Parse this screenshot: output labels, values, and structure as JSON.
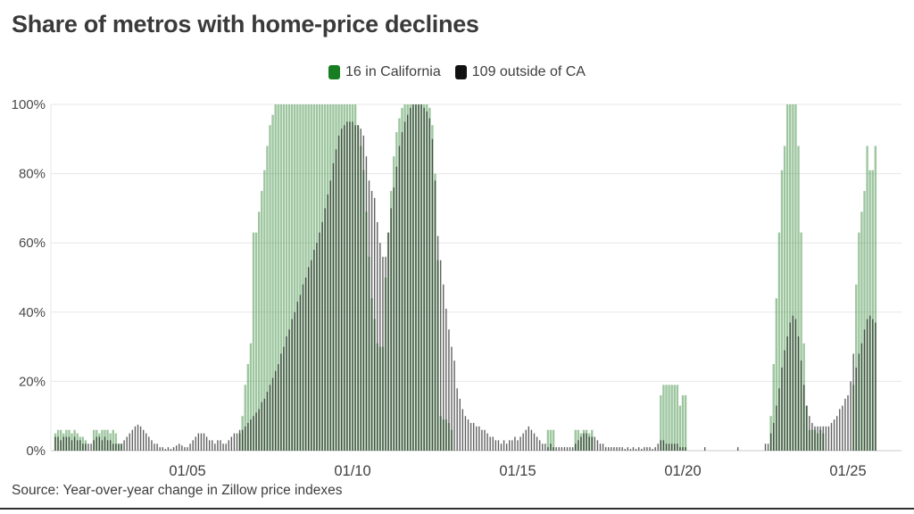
{
  "header": {
    "title": "Share of metros with home-price declines"
  },
  "source": {
    "text": "Source: Year-over-year change in Zillow price indexes"
  },
  "chart_data": {
    "type": "bar",
    "title": "Share of metros with home-price declines",
    "subtitle": "",
    "unit": "%",
    "frequency": "monthly",
    "start_month": "2001-01",
    "end_month": "2025-11",
    "ylim": [
      0,
      100
    ],
    "grid": "horizontal",
    "legend_position": "top-center",
    "axis_colors": {
      "gridline": "#e7e7e7",
      "baseline": "#c9c9c9"
    },
    "y_ticks": [
      {
        "value": 0,
        "label": "0%"
      },
      {
        "value": 20,
        "label": "20%"
      },
      {
        "value": 40,
        "label": "40%"
      },
      {
        "value": 60,
        "label": "60%"
      },
      {
        "value": 80,
        "label": "80%"
      },
      {
        "value": 100,
        "label": "100%"
      }
    ],
    "x_ticks": [
      {
        "month_index": 48,
        "label": "01/05"
      },
      {
        "month_index": 108,
        "label": "01/10"
      },
      {
        "month_index": 168,
        "label": "01/15"
      },
      {
        "month_index": 228,
        "label": "01/20"
      },
      {
        "month_index": 288,
        "label": "01/25"
      }
    ],
    "series": [
      {
        "name": "16 in California",
        "legend_color": "#177e22",
        "bar_color": "#3e8e41",
        "bar_opacity": 0.5,
        "bar_width": 2.4,
        "values": [
          5,
          6,
          6,
          5,
          6,
          6,
          5,
          6,
          5,
          4,
          4,
          3,
          0,
          0,
          6,
          6,
          5,
          6,
          6,
          6,
          5,
          6,
          5,
          2,
          2,
          0,
          0,
          0,
          0,
          0,
          0,
          0,
          0,
          0,
          0,
          0,
          0,
          0,
          0,
          0,
          0,
          0,
          0,
          0,
          0,
          0,
          0,
          0,
          0,
          0,
          0,
          0,
          0,
          0,
          0,
          0,
          0,
          0,
          0,
          0,
          0,
          0,
          0,
          0,
          0,
          0,
          0,
          5,
          10,
          19,
          25,
          31,
          63,
          63,
          69,
          75,
          81,
          88,
          94,
          97,
          100,
          100,
          100,
          100,
          100,
          100,
          100,
          100,
          100,
          100,
          100,
          100,
          100,
          100,
          100,
          100,
          100,
          100,
          100,
          100,
          100,
          100,
          100,
          100,
          100,
          100,
          100,
          100,
          100,
          100,
          94,
          88,
          81,
          69,
          56,
          44,
          38,
          31,
          30,
          30,
          50,
          63,
          75,
          85,
          92,
          96,
          99,
          100,
          100,
          100,
          100,
          100,
          100,
          100,
          100,
          100,
          99,
          94,
          80,
          55,
          10,
          9,
          9,
          8,
          6,
          0,
          0,
          0,
          0,
          0,
          0,
          0,
          0,
          0,
          0,
          0,
          0,
          0,
          0,
          0,
          0,
          0,
          0,
          0,
          0,
          0,
          0,
          0,
          0,
          0,
          0,
          0,
          0,
          0,
          0,
          0,
          0,
          0,
          0,
          6,
          6,
          6,
          0,
          0,
          0,
          0,
          0,
          0,
          0,
          6,
          6,
          5,
          6,
          6,
          5,
          6,
          0,
          0,
          0,
          0,
          0,
          0,
          0,
          0,
          0,
          0,
          0,
          0,
          0,
          0,
          0,
          0,
          0,
          0,
          0,
          0,
          0,
          0,
          0,
          0,
          16,
          19,
          19,
          19,
          19,
          19,
          19,
          13,
          16,
          16,
          0,
          0,
          0,
          0,
          0,
          0,
          0,
          0,
          0,
          0,
          0,
          0,
          0,
          0,
          0,
          0,
          0,
          0,
          0,
          0,
          0,
          0,
          0,
          0,
          0,
          0,
          0,
          0,
          0,
          0,
          10,
          25,
          44,
          63,
          81,
          88,
          100,
          100,
          100,
          100,
          88,
          63,
          31,
          13,
          6,
          6,
          6,
          5,
          6,
          5,
          0,
          0,
          0,
          0,
          0,
          0,
          0,
          0,
          0,
          0,
          19,
          48,
          63,
          69,
          75,
          88,
          81,
          81,
          88
        ]
      },
      {
        "name": "109 outside of CA",
        "legend_color": "#111111",
        "bar_color": "#1f1f1f",
        "bar_opacity": 0.7,
        "bar_width": 1.4,
        "values": [
          4,
          4,
          3,
          4,
          4,
          4,
          3,
          4,
          3,
          3,
          2,
          2,
          2,
          2,
          3,
          4,
          4,
          3,
          4,
          3,
          3,
          2,
          2,
          2,
          2,
          3,
          4,
          5,
          6,
          7,
          7.5,
          7,
          6,
          5,
          4,
          3,
          2,
          2,
          1,
          1,
          0.5,
          1,
          0.5,
          1,
          1.5,
          2,
          1.5,
          1,
          1,
          2,
          3,
          4,
          5,
          5,
          5,
          4,
          3,
          3,
          2,
          3,
          3,
          2,
          2,
          3,
          4,
          5,
          5,
          6,
          6,
          7,
          8,
          9,
          10,
          11,
          12,
          14,
          15,
          17,
          19,
          21,
          23,
          25,
          28,
          30,
          33,
          35,
          38,
          40,
          43,
          45,
          48,
          50,
          53,
          55,
          58,
          60,
          63,
          66,
          70,
          74,
          78,
          83,
          87,
          91,
          93,
          94,
          95,
          95,
          95,
          94,
          94,
          93,
          91,
          85,
          78,
          75,
          73,
          66,
          60,
          56,
          56,
          63,
          70,
          76,
          82,
          88,
          92,
          95,
          97,
          99,
          100,
          100,
          100,
          100,
          99,
          98,
          96,
          90,
          78,
          62,
          55,
          48,
          41,
          35,
          30,
          26,
          18,
          15,
          12,
          10,
          9,
          8,
          8,
          7,
          7,
          6,
          6,
          5,
          4,
          4,
          3,
          3,
          2,
          3,
          2,
          3,
          3,
          4,
          3,
          4,
          5,
          6,
          7,
          6,
          5,
          4,
          3,
          2,
          2,
          1,
          2,
          1,
          1,
          1,
          1,
          1,
          1,
          1,
          1,
          2,
          3,
          4,
          5,
          5,
          4,
          4,
          4,
          3,
          2,
          2,
          1,
          1,
          1,
          1,
          1,
          1,
          1,
          0.5,
          1,
          0.5,
          1,
          0.5,
          1,
          0.5,
          1,
          1,
          1,
          0.5,
          1,
          2,
          3,
          3,
          2,
          2,
          2,
          2,
          2,
          1,
          1,
          1,
          0,
          0,
          0,
          0,
          0,
          0,
          1,
          0,
          0,
          0,
          0,
          0,
          0,
          0,
          0,
          0,
          0,
          0,
          1,
          0,
          0,
          0,
          0,
          0,
          0,
          0,
          0,
          0,
          2,
          2,
          5,
          8,
          13,
          18,
          24,
          29,
          33,
          37,
          39,
          38,
          33,
          26,
          19,
          13,
          10,
          8,
          7,
          7,
          7,
          7,
          7,
          7,
          8,
          9,
          10,
          12,
          13,
          15,
          16,
          20,
          28,
          24,
          28,
          31,
          35,
          38,
          39,
          38,
          37
        ]
      }
    ]
  }
}
